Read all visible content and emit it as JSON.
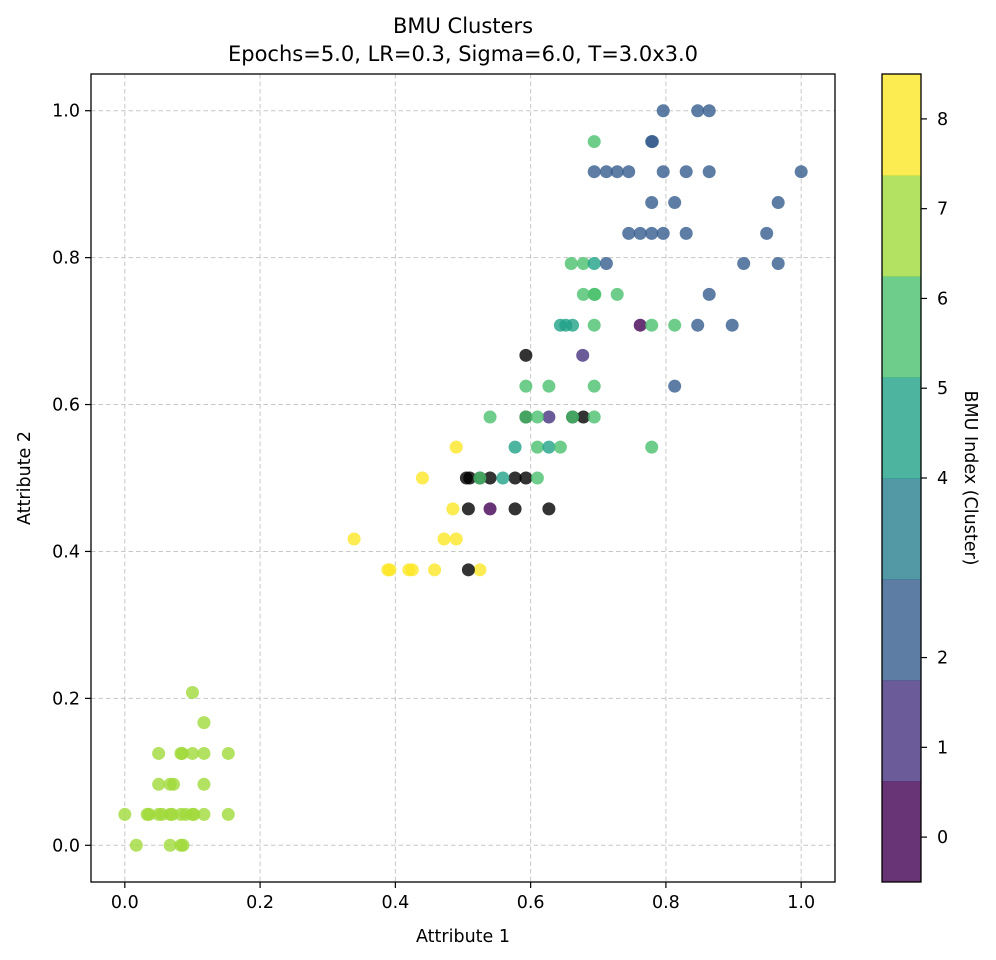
{
  "chart_data": {
    "type": "scatter",
    "title": "BMU Clusters",
    "subtitle": "Epochs=5.0, LR=0.3, Sigma=6.0, T=3.0x3.0",
    "xlabel": "Attribute 1",
    "ylabel": "Attribute 2",
    "xlim": [
      -0.05,
      1.05
    ],
    "ylim": [
      -0.05,
      1.05
    ],
    "xticks": [
      0.0,
      0.2,
      0.4,
      0.6,
      0.8,
      1.0
    ],
    "yticks": [
      0.0,
      0.2,
      0.4,
      0.6,
      0.8,
      1.0
    ],
    "xtick_labels": [
      "0.0",
      "0.2",
      "0.4",
      "0.6",
      "0.8",
      "1.0"
    ],
    "ytick_labels": [
      "0.0",
      "0.2",
      "0.4",
      "0.6",
      "0.8",
      "1.0"
    ],
    "grid": true,
    "point_alpha": 0.8,
    "colorbar": {
      "label": "BMU Index (Cluster)",
      "range": [
        -0.5,
        8.5
      ],
      "tick_values": [
        0,
        1,
        2,
        4,
        5,
        6,
        7,
        8
      ],
      "tick_labels": [
        "0",
        "1",
        "2",
        "4",
        "5",
        "6",
        "7",
        "8"
      ],
      "colors": [
        "#440154",
        "#46327e",
        "#365c8d",
        "#277f8e",
        "#1fa187",
        "#4ac16d",
        "#a0da39",
        "#fde725"
      ]
    },
    "points": [
      {
        "x": 0.0,
        "y": 0.042,
        "c": 6
      },
      {
        "x": 0.017,
        "y": 0.0,
        "c": 6
      },
      {
        "x": 0.033,
        "y": 0.042,
        "c": 6
      },
      {
        "x": 0.036,
        "y": 0.042,
        "c": 6
      },
      {
        "x": 0.05,
        "y": 0.042,
        "c": 6
      },
      {
        "x": 0.05,
        "y": 0.083,
        "c": 6
      },
      {
        "x": 0.05,
        "y": 0.125,
        "c": 6
      },
      {
        "x": 0.055,
        "y": 0.042,
        "c": 6
      },
      {
        "x": 0.067,
        "y": 0.042,
        "c": 6
      },
      {
        "x": 0.067,
        "y": 0.083,
        "c": 6
      },
      {
        "x": 0.067,
        "y": 0.0,
        "c": 6
      },
      {
        "x": 0.07,
        "y": 0.042,
        "c": 6
      },
      {
        "x": 0.072,
        "y": 0.083,
        "c": 6
      },
      {
        "x": 0.083,
        "y": 0.042,
        "c": 6
      },
      {
        "x": 0.083,
        "y": 0.125,
        "c": 6
      },
      {
        "x": 0.083,
        "y": 0.0,
        "c": 6
      },
      {
        "x": 0.085,
        "y": 0.125,
        "c": 6
      },
      {
        "x": 0.086,
        "y": 0.0,
        "c": 6
      },
      {
        "x": 0.09,
        "y": 0.042,
        "c": 6
      },
      {
        "x": 0.1,
        "y": 0.042,
        "c": 6
      },
      {
        "x": 0.1,
        "y": 0.125,
        "c": 6
      },
      {
        "x": 0.102,
        "y": 0.042,
        "c": 6
      },
      {
        "x": 0.1,
        "y": 0.208,
        "c": 6
      },
      {
        "x": 0.117,
        "y": 0.125,
        "c": 6
      },
      {
        "x": 0.117,
        "y": 0.167,
        "c": 6
      },
      {
        "x": 0.117,
        "y": 0.083,
        "c": 6
      },
      {
        "x": 0.117,
        "y": 0.042,
        "c": 6
      },
      {
        "x": 0.153,
        "y": 0.125,
        "c": 6
      },
      {
        "x": 0.153,
        "y": 0.042,
        "c": 6
      },
      {
        "x": 0.339,
        "y": 0.417,
        "c": 7
      },
      {
        "x": 0.389,
        "y": 0.375,
        "c": 7
      },
      {
        "x": 0.392,
        "y": 0.375,
        "c": 7
      },
      {
        "x": 0.42,
        "y": 0.375,
        "c": 7
      },
      {
        "x": 0.425,
        "y": 0.375,
        "c": 7
      },
      {
        "x": 0.44,
        "y": 0.5,
        "c": 7
      },
      {
        "x": 0.458,
        "y": 0.375,
        "c": 7
      },
      {
        "x": 0.472,
        "y": 0.417,
        "c": 7
      },
      {
        "x": 0.485,
        "y": 0.458,
        "c": 7
      },
      {
        "x": 0.49,
        "y": 0.417,
        "c": 7
      },
      {
        "x": 0.49,
        "y": 0.542,
        "c": 7
      },
      {
        "x": 0.525,
        "y": 0.375,
        "c": 7
      },
      {
        "x": 0.505,
        "y": 0.5,
        "c": 8
      },
      {
        "x": 0.508,
        "y": 0.458,
        "c": 8
      },
      {
        "x": 0.508,
        "y": 0.375,
        "c": 8
      },
      {
        "x": 0.51,
        "y": 0.5,
        "c": 8
      },
      {
        "x": 0.525,
        "y": 0.5,
        "c": 8
      },
      {
        "x": 0.54,
        "y": 0.5,
        "c": 8
      },
      {
        "x": 0.577,
        "y": 0.458,
        "c": 8
      },
      {
        "x": 0.577,
        "y": 0.5,
        "c": 8
      },
      {
        "x": 0.593,
        "y": 0.5,
        "c": 8
      },
      {
        "x": 0.593,
        "y": 0.667,
        "c": 8
      },
      {
        "x": 0.593,
        "y": 0.583,
        "c": 8
      },
      {
        "x": 0.627,
        "y": 0.458,
        "c": 8
      },
      {
        "x": 0.662,
        "y": 0.583,
        "c": 8
      },
      {
        "x": 0.678,
        "y": 0.583,
        "c": 8
      },
      {
        "x": 0.54,
        "y": 0.458,
        "c": 0
      },
      {
        "x": 0.627,
        "y": 0.583,
        "c": 1
      },
      {
        "x": 0.677,
        "y": 0.667,
        "c": 1
      },
      {
        "x": 0.762,
        "y": 0.708,
        "c": 0
      },
      {
        "x": 0.525,
        "y": 0.5,
        "c": 5
      },
      {
        "x": 0.54,
        "y": 0.583,
        "c": 5
      },
      {
        "x": 0.559,
        "y": 0.5,
        "c": 4
      },
      {
        "x": 0.577,
        "y": 0.542,
        "c": 4
      },
      {
        "x": 0.593,
        "y": 0.625,
        "c": 5
      },
      {
        "x": 0.593,
        "y": 0.583,
        "c": 5
      },
      {
        "x": 0.61,
        "y": 0.583,
        "c": 5
      },
      {
        "x": 0.61,
        "y": 0.542,
        "c": 5
      },
      {
        "x": 0.61,
        "y": 0.5,
        "c": 5
      },
      {
        "x": 0.627,
        "y": 0.542,
        "c": 4
      },
      {
        "x": 0.627,
        "y": 0.625,
        "c": 5
      },
      {
        "x": 0.644,
        "y": 0.542,
        "c": 5
      },
      {
        "x": 0.644,
        "y": 0.708,
        "c": 4
      },
      {
        "x": 0.652,
        "y": 0.708,
        "c": 4
      },
      {
        "x": 0.662,
        "y": 0.708,
        "c": 4
      },
      {
        "x": 0.66,
        "y": 0.792,
        "c": 5
      },
      {
        "x": 0.662,
        "y": 0.583,
        "c": 5
      },
      {
        "x": 0.678,
        "y": 0.792,
        "c": 5
      },
      {
        "x": 0.678,
        "y": 0.75,
        "c": 5
      },
      {
        "x": 0.694,
        "y": 0.958,
        "c": 5
      },
      {
        "x": 0.694,
        "y": 0.75,
        "c": 5
      },
      {
        "x": 0.695,
        "y": 0.75,
        "c": 5
      },
      {
        "x": 0.694,
        "y": 0.708,
        "c": 5
      },
      {
        "x": 0.694,
        "y": 0.625,
        "c": 5
      },
      {
        "x": 0.694,
        "y": 0.583,
        "c": 5
      },
      {
        "x": 0.694,
        "y": 0.792,
        "c": 4
      },
      {
        "x": 0.728,
        "y": 0.75,
        "c": 5
      },
      {
        "x": 0.779,
        "y": 0.708,
        "c": 5
      },
      {
        "x": 0.779,
        "y": 0.542,
        "c": 5
      },
      {
        "x": 0.813,
        "y": 0.708,
        "c": 5
      },
      {
        "x": 0.694,
        "y": 0.917,
        "c": 2
      },
      {
        "x": 0.712,
        "y": 0.917,
        "c": 2
      },
      {
        "x": 0.712,
        "y": 0.792,
        "c": 2
      },
      {
        "x": 0.728,
        "y": 0.917,
        "c": 2
      },
      {
        "x": 0.745,
        "y": 0.917,
        "c": 2
      },
      {
        "x": 0.745,
        "y": 0.833,
        "c": 2
      },
      {
        "x": 0.762,
        "y": 0.833,
        "c": 2
      },
      {
        "x": 0.779,
        "y": 0.958,
        "c": 2
      },
      {
        "x": 0.78,
        "y": 0.958,
        "c": 2
      },
      {
        "x": 0.779,
        "y": 0.875,
        "c": 2
      },
      {
        "x": 0.779,
        "y": 0.833,
        "c": 2
      },
      {
        "x": 0.796,
        "y": 1.0,
        "c": 2
      },
      {
        "x": 0.796,
        "y": 0.917,
        "c": 2
      },
      {
        "x": 0.796,
        "y": 0.833,
        "c": 2
      },
      {
        "x": 0.813,
        "y": 0.875,
        "c": 2
      },
      {
        "x": 0.813,
        "y": 0.625,
        "c": 2
      },
      {
        "x": 0.83,
        "y": 0.917,
        "c": 2
      },
      {
        "x": 0.83,
        "y": 0.833,
        "c": 2
      },
      {
        "x": 0.847,
        "y": 1.0,
        "c": 2
      },
      {
        "x": 0.847,
        "y": 0.708,
        "c": 2
      },
      {
        "x": 0.864,
        "y": 1.0,
        "c": 2
      },
      {
        "x": 0.864,
        "y": 0.917,
        "c": 2
      },
      {
        "x": 0.864,
        "y": 0.75,
        "c": 2
      },
      {
        "x": 0.898,
        "y": 0.708,
        "c": 2
      },
      {
        "x": 0.915,
        "y": 0.792,
        "c": 2
      },
      {
        "x": 0.949,
        "y": 0.833,
        "c": 2
      },
      {
        "x": 0.966,
        "y": 0.875,
        "c": 2
      },
      {
        "x": 0.966,
        "y": 0.792,
        "c": 2
      },
      {
        "x": 1.0,
        "y": 0.917,
        "c": 2
      }
    ]
  }
}
